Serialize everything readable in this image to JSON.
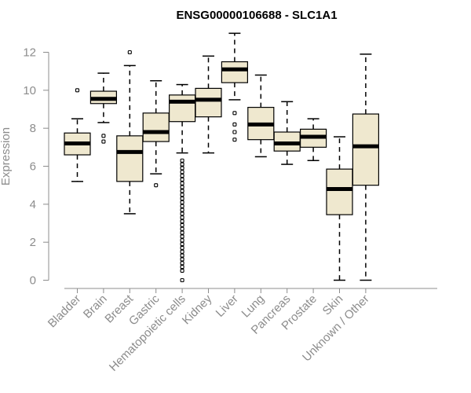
{
  "chart_data": {
    "type": "boxplot",
    "title": "ENSG00000106688 - SLC1A1",
    "xlabel": "",
    "ylabel": "Expression",
    "ylim": [
      0,
      12.5
    ],
    "yticks": [
      0,
      2,
      4,
      6,
      8,
      10,
      12
    ],
    "box_color": "#efe8cf",
    "categories": [
      "Bladder",
      "Brain",
      "Breast",
      "Gastric",
      "Hematopoietic cells",
      "Kidney",
      "Liver",
      "Lung",
      "Pancreas",
      "Prostate",
      "Skin",
      "Unknown / Other"
    ],
    "boxes": [
      {
        "min": 5.2,
        "q1": 6.6,
        "median": 7.2,
        "q3": 7.75,
        "max": 8.5,
        "outliers": [
          10.0
        ]
      },
      {
        "min": 8.3,
        "q1": 9.3,
        "median": 9.55,
        "q3": 9.95,
        "max": 10.9,
        "outliers": [
          7.3,
          7.6
        ]
      },
      {
        "min": 3.5,
        "q1": 5.2,
        "median": 6.75,
        "q3": 7.6,
        "max": 11.3,
        "outliers": [
          12.0
        ]
      },
      {
        "min": 5.6,
        "q1": 7.3,
        "median": 7.8,
        "q3": 8.8,
        "max": 10.5,
        "outliers": [
          5.0
        ]
      },
      {
        "min": 6.7,
        "q1": 8.35,
        "median": 9.4,
        "q3": 9.75,
        "max": 10.3,
        "outliers": [
          6.3,
          6.1,
          5.9,
          5.7,
          5.5,
          5.3,
          5.1,
          4.9,
          4.7,
          4.5,
          4.3,
          4.1,
          3.9,
          3.7,
          3.5,
          3.3,
          3.1,
          2.9,
          2.7,
          2.5,
          2.3,
          2.1,
          1.9,
          1.7,
          1.5,
          1.3,
          1.1,
          0.9,
          0.7,
          0.5,
          0.0
        ]
      },
      {
        "min": 6.7,
        "q1": 8.6,
        "median": 9.5,
        "q3": 10.1,
        "max": 11.8,
        "outliers": []
      },
      {
        "min": 9.5,
        "q1": 10.4,
        "median": 11.1,
        "q3": 11.5,
        "max": 13.0,
        "outliers": [
          8.8,
          8.2,
          7.8,
          7.4
        ]
      },
      {
        "min": 6.5,
        "q1": 7.4,
        "median": 8.2,
        "q3": 9.1,
        "max": 10.8,
        "outliers": []
      },
      {
        "min": 6.1,
        "q1": 6.8,
        "median": 7.2,
        "q3": 7.8,
        "max": 9.4,
        "outliers": []
      },
      {
        "min": 6.3,
        "q1": 7.0,
        "median": 7.55,
        "q3": 7.95,
        "max": 8.5,
        "outliers": []
      },
      {
        "min": 0.0,
        "q1": 3.45,
        "median": 4.8,
        "q3": 5.85,
        "max": 7.55,
        "outliers": []
      },
      {
        "min": 0.0,
        "q1": 5.0,
        "median": 7.05,
        "q3": 8.75,
        "max": 11.9,
        "outliers": []
      }
    ]
  }
}
